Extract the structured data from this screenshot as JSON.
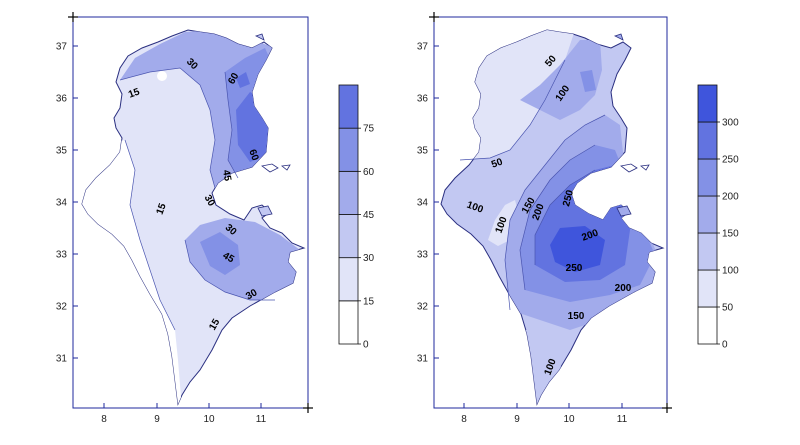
{
  "colors": {
    "c0": "#ffffff",
    "c1": "#e1e4f8",
    "c2": "#c2c8f2",
    "c3": "#a2abeb",
    "c4": "#8391e6",
    "c5": "#6273e0",
    "c6": "#3f55dc",
    "c7": "#2233dd",
    "frame": "#1f2a9c",
    "coast": "#2a2f80"
  },
  "maps": [
    {
      "name": "left",
      "x_ticks": [
        "8",
        "9",
        "10",
        "11"
      ],
      "y_ticks": [
        "31",
        "32",
        "33",
        "34",
        "35",
        "36",
        "37"
      ],
      "legend_labels": [
        "0",
        "15",
        "30",
        "45",
        "60",
        "75"
      ],
      "contour_labels": [
        "15",
        "30",
        "60",
        "60",
        "45",
        "30",
        "15",
        "30",
        "45",
        "30",
        "15"
      ]
    },
    {
      "name": "right",
      "x_ticks": [
        "8",
        "9",
        "10",
        "11"
      ],
      "y_ticks": [
        "31",
        "32",
        "33",
        "34",
        "35",
        "36",
        "37"
      ],
      "legend_labels": [
        "0",
        "50",
        "100",
        "150",
        "200",
        "250",
        "300"
      ],
      "contour_labels": [
        "50",
        "100",
        "50",
        "100",
        "100",
        "150",
        "200",
        "250",
        "200",
        "250",
        "200",
        "150",
        "100"
      ]
    }
  ]
}
